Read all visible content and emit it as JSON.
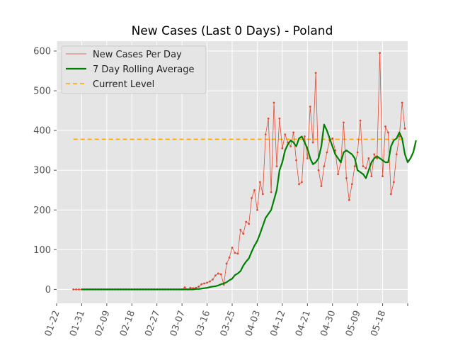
{
  "chart_data": {
    "type": "line",
    "title": "New Cases (Last 0 Days) - Poland",
    "xlabel": "",
    "ylabel": "",
    "x_start": "01-28",
    "x_end": "05-20",
    "x_ticks": [
      "01-22",
      "01-31",
      "02-09",
      "02-18",
      "02-27",
      "03-07",
      "03-16",
      "03-25",
      "04-03",
      "04-12",
      "04-21",
      "04-30",
      "05-09",
      "05-18"
    ],
    "xlim": [
      "01-22",
      "05-27"
    ],
    "ylim": [
      -35,
      625
    ],
    "y_ticks": [
      0,
      100,
      200,
      300,
      400,
      500,
      600
    ],
    "grid": true,
    "legend_position": "upper-left",
    "colors": {
      "daily": "#E24A33",
      "rolling": "#008000",
      "current": "#FFA500",
      "plot_bg": "#E5E5E5",
      "grid": "#FFFFFF"
    },
    "series": [
      {
        "name": "New Cases Per Day",
        "style": "thin-line-with-dots",
        "values": [
          0,
          0,
          0,
          0,
          0,
          0,
          0,
          0,
          0,
          0,
          0,
          0,
          0,
          0,
          0,
          0,
          0,
          0,
          0,
          0,
          0,
          0,
          0,
          0,
          0,
          0,
          0,
          0,
          0,
          0,
          0,
          0,
          0,
          0,
          0,
          0,
          0,
          0,
          0,
          0,
          5,
          0,
          4,
          3,
          4,
          7,
          13,
          15,
          17,
          20,
          25,
          35,
          40,
          38,
          12,
          65,
          80,
          105,
          92,
          90,
          150,
          140,
          170,
          165,
          230,
          250,
          200,
          270,
          240,
          390,
          430,
          245,
          470,
          310,
          430,
          355,
          390,
          370,
          360,
          395,
          325,
          265,
          270,
          385,
          330,
          460,
          370,
          545,
          300,
          260,
          310,
          345,
          375,
          380,
          350,
          290,
          320,
          420,
          280,
          225,
          265,
          310,
          345,
          425,
          310,
          305,
          330,
          285,
          340,
          330,
          595,
          285,
          410,
          395,
          240,
          270,
          340,
          385,
          470,
          405
        ]
      },
      {
        "name": "7 Day Rolling Average",
        "style": "thick-line",
        "values": [
          0,
          0,
          0,
          0,
          0,
          0,
          0,
          0,
          0,
          0,
          0,
          0,
          0,
          0,
          0,
          0,
          0,
          0,
          0,
          0,
          0,
          0,
          0,
          0,
          0,
          0,
          0,
          0,
          0,
          0,
          0,
          0,
          0,
          0,
          0,
          0,
          0,
          0,
          0,
          0,
          0,
          1,
          1,
          2,
          3,
          4,
          6,
          7,
          8,
          10,
          13,
          15,
          18,
          23,
          27,
          36,
          40,
          46,
          60,
          70,
          78,
          95,
          110,
          122,
          140,
          160,
          180,
          190,
          200,
          225,
          250,
          300,
          320,
          350,
          365,
          375,
          370,
          360,
          380,
          385,
          370,
          355,
          330,
          315,
          320,
          330,
          360,
          415,
          400,
          380,
          360,
          340,
          330,
          320,
          345,
          350,
          345,
          340,
          330,
          300,
          295,
          290,
          280,
          300,
          320,
          330,
          335,
          330,
          325,
          320,
          320,
          360,
          375,
          380,
          395,
          380,
          340,
          320,
          330,
          345,
          375
        ]
      },
      {
        "name": "Current Level",
        "style": "dashed",
        "value": 378
      }
    ]
  }
}
